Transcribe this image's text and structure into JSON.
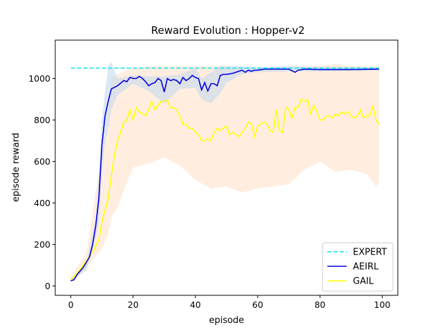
{
  "chart_data": {
    "type": "line",
    "title": "Reward Evolution : Hopper-v2",
    "xlabel": "episode",
    "ylabel": "episode reward",
    "xlim": [
      -5,
      105
    ],
    "ylim": [
      -45,
      1185
    ],
    "xticks": [
      0,
      20,
      40,
      60,
      80,
      100
    ],
    "yticks": [
      0,
      200,
      400,
      600,
      800,
      1000
    ],
    "grid": false,
    "legend_position": "lower-right",
    "colors": {
      "expert": "#00e5ee",
      "aeirl": "#0000dd",
      "aeirl_band": "#c6d9ef",
      "gail": "#ffff00",
      "gail_band": "#ffe0c4"
    },
    "series": [
      {
        "name": "EXPERT",
        "style": "dashed",
        "x": [
          0,
          99
        ],
        "y": [
          1050,
          1050
        ]
      },
      {
        "name": "AEIRL",
        "style": "solid",
        "anchors_x": [
          0,
          1,
          2,
          4,
          6,
          7,
          8,
          9,
          10,
          11,
          12,
          13,
          15,
          17,
          18,
          19,
          20,
          21,
          22,
          23,
          24,
          25,
          26,
          27,
          28,
          29,
          30,
          31,
          32,
          33,
          34,
          35,
          36,
          37,
          38,
          39,
          40,
          41,
          42,
          43,
          44,
          45,
          46,
          47,
          48,
          49,
          50,
          52,
          55,
          56,
          57,
          58,
          59,
          60,
          62,
          65,
          70,
          72,
          73,
          75,
          80,
          90,
          99
        ],
        "anchors_y": [
          25,
          30,
          55,
          90,
          140,
          200,
          290,
          420,
          680,
          820,
          890,
          950,
          965,
          990,
          985,
          1005,
          1000,
          1000,
          1010,
          1000,
          985,
          965,
          975,
          980,
          1000,
          990,
          935,
          1000,
          990,
          995,
          990,
          975,
          1005,
          990,
          1000,
          1015,
          1005,
          1000,
          945,
          980,
          940,
          975,
          975,
          965,
          1015,
          1020,
          1020,
          1025,
          1040,
          1030,
          1040,
          1035,
          1040,
          1040,
          1045,
          1045,
          1045,
          1030,
          1040,
          1045,
          1043,
          1043,
          1045
        ],
        "band_x": [
          0,
          5,
          8,
          9,
          10,
          11,
          12,
          13,
          15,
          20,
          25,
          30,
          35,
          40,
          42,
          45,
          48,
          50,
          55,
          60,
          70,
          80,
          99
        ],
        "band_upper": [
          30,
          110,
          330,
          520,
          800,
          940,
          1060,
          1080,
          1000,
          1015,
          1010,
          1010,
          1020,
          1050,
          1000,
          1030,
          1060,
          1060,
          1060,
          1055,
          1060,
          1055,
          1055
        ],
        "band_lower": [
          20,
          75,
          230,
          310,
          540,
          700,
          760,
          850,
          920,
          975,
          940,
          880,
          950,
          955,
          900,
          880,
          930,
          980,
          1020,
          1030,
          1035,
          1035,
          1040
        ]
      },
      {
        "name": "GAIL",
        "style": "solid",
        "anchors_x": [
          0,
          2,
          5,
          7,
          9,
          10,
          12,
          13,
          14,
          15,
          16,
          17,
          18,
          19,
          20,
          21,
          22,
          23,
          24,
          25,
          26,
          27,
          28,
          29,
          30,
          31,
          32,
          33,
          34,
          35,
          36,
          37,
          38,
          39,
          40,
          41,
          42,
          43,
          44,
          45,
          46,
          47,
          48,
          49,
          50,
          51,
          52,
          53,
          54,
          55,
          56,
          57,
          58,
          59,
          60,
          61,
          62,
          63,
          64,
          65,
          66,
          67,
          68,
          69,
          70,
          71,
          72,
          73,
          74,
          75,
          76,
          77,
          78,
          79,
          80,
          81,
          82,
          83,
          84,
          85,
          86,
          87,
          88,
          89,
          90,
          91,
          92,
          93,
          94,
          95,
          96,
          97,
          98,
          99
        ],
        "anchors_y": [
          30,
          60,
          120,
          165,
          220,
          310,
          420,
          530,
          630,
          700,
          740,
          790,
          800,
          850,
          800,
          860,
          840,
          830,
          820,
          850,
          890,
          850,
          870,
          890,
          890,
          895,
          860,
          860,
          850,
          820,
          780,
          780,
          760,
          760,
          740,
          730,
          700,
          700,
          710,
          700,
          740,
          760,
          750,
          760,
          770,
          730,
          740,
          730,
          720,
          740,
          760,
          790,
          780,
          720,
          770,
          780,
          790,
          780,
          750,
          740,
          850,
          750,
          740,
          860,
          850,
          810,
          860,
          860,
          900,
          890,
          900,
          830,
          870,
          840,
          800,
          800,
          820,
          820,
          810,
          830,
          820,
          840,
          830,
          840,
          820,
          810,
          820,
          850,
          810,
          820,
          820,
          870,
          800,
          780
        ],
        "band_x": [
          0,
          5,
          10,
          12,
          13,
          15,
          18,
          20,
          25,
          30,
          35,
          40,
          45,
          50,
          55,
          60,
          65,
          70,
          75,
          80,
          85,
          90,
          95,
          98,
          99
        ],
        "band_upper": [
          45,
          160,
          650,
          800,
          1000,
          1020,
          1040,
          1050,
          1060,
          1060,
          1060,
          1060,
          1060,
          1060,
          1040,
          1050,
          1050,
          1060,
          1060,
          1060,
          1070,
          1060,
          1060,
          1060,
          1060
        ],
        "band_lower": [
          20,
          90,
          180,
          250,
          330,
          380,
          500,
          570,
          590,
          620,
          580,
          510,
          470,
          480,
          450,
          470,
          480,
          490,
          560,
          600,
          550,
          560,
          540,
          480,
          500
        ]
      }
    ]
  }
}
